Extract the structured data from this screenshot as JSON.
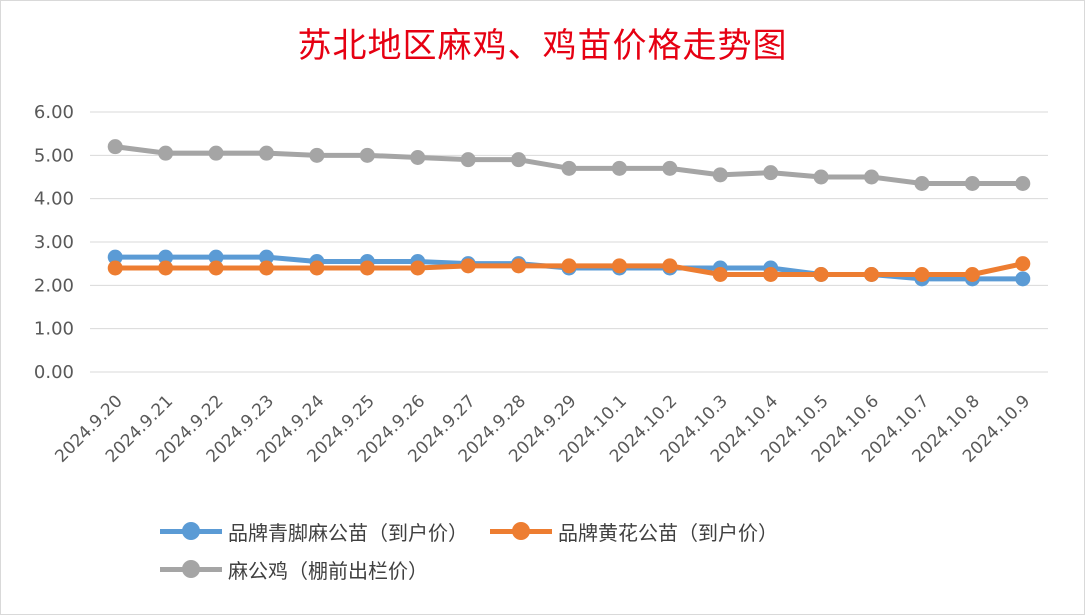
{
  "chart_data": {
    "type": "line",
    "title": "苏北地区麻鸡、鸡苗价格走势图",
    "categories": [
      "2024.9.20",
      "2024.9.21",
      "2024.9.22",
      "2024.9.23",
      "2024.9.24",
      "2024.9.25",
      "2024.9.26",
      "2024.9.27",
      "2024.9.28",
      "2024.9.29",
      "2024.10.1",
      "2024.10.2",
      "2024.10.3",
      "2024.10.4",
      "2024.10.5",
      "2024.10.6",
      "2024.10.7",
      "2024.10.8",
      "2024.10.9"
    ],
    "ylim": [
      0,
      6
    ],
    "yticks": [
      "0.00",
      "1.00",
      "2.00",
      "3.00",
      "4.00",
      "5.00",
      "6.00"
    ],
    "grid": true,
    "legend_position": "bottom",
    "series": [
      {
        "name": "品牌青脚麻公苗（到户价）",
        "color": "#5b9bd5",
        "values": [
          2.65,
          2.65,
          2.65,
          2.65,
          2.55,
          2.55,
          2.55,
          2.5,
          2.5,
          2.4,
          2.4,
          2.4,
          2.4,
          2.4,
          2.25,
          2.25,
          2.15,
          2.15,
          2.15
        ]
      },
      {
        "name": "品牌黄花公苗（到户价）",
        "color": "#ed7d31",
        "values": [
          2.4,
          2.4,
          2.4,
          2.4,
          2.4,
          2.4,
          2.4,
          2.45,
          2.45,
          2.45,
          2.45,
          2.45,
          2.25,
          2.25,
          2.25,
          2.25,
          2.25,
          2.25,
          2.5
        ]
      },
      {
        "name": "麻公鸡（棚前出栏价）",
        "color": "#a5a5a5",
        "values": [
          5.2,
          5.05,
          5.05,
          5.05,
          5.0,
          5.0,
          4.95,
          4.9,
          4.9,
          4.7,
          4.7,
          4.7,
          4.55,
          4.6,
          4.5,
          4.5,
          4.35,
          4.35,
          4.35
        ]
      }
    ]
  }
}
